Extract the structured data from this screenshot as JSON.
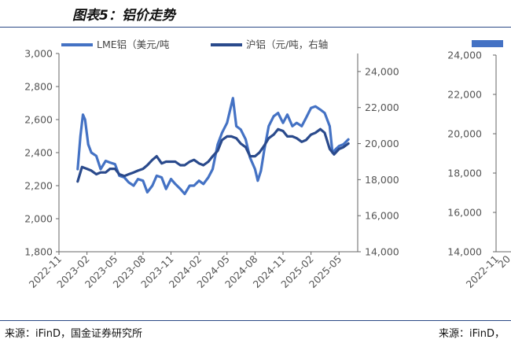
{
  "header": {
    "title": "图表5：铝价走势"
  },
  "source": {
    "left": "来源：iFinD，国金证券研究所",
    "right": "来源：iFinD，"
  },
  "colors": {
    "lme": "#4472c4",
    "shfe": "#2a4a8c",
    "axis": "#666666",
    "header_rule": "#2b4a86"
  },
  "chart_data": [
    {
      "type": "line",
      "title": "",
      "legend": {
        "placement": "top",
        "items": [
          "LME铝（美元/吨",
          "沪铝（元/吨，右轴"
        ]
      },
      "x_ticks": [
        "2022-11",
        "2023-02",
        "2023-05",
        "2023-08",
        "2023-11",
        "2024-02",
        "2024-05",
        "2024-08",
        "2024-11",
        "2025-02",
        "2025-05"
      ],
      "y_left": {
        "ticks": [
          "1,800",
          "2,000",
          "2,200",
          "2,400",
          "2,600",
          "2,800",
          "3,000"
        ],
        "range": [
          1800,
          3000
        ]
      },
      "y_right": {
        "ticks": [
          "14,000",
          "16,000",
          "18,000",
          "20,000",
          "22,000",
          "24,000"
        ],
        "range": [
          14000,
          25000
        ]
      },
      "series": [
        {
          "name": "LME铝（美元/吨",
          "axis": "left",
          "x": [
            "2023-01-01",
            "2023-01-10",
            "2023-01-18",
            "2023-01-25",
            "2023-02-05",
            "2023-02-15",
            "2023-03-01",
            "2023-03-15",
            "2023-04-01",
            "2023-04-15",
            "2023-05-01",
            "2023-05-15",
            "2023-06-01",
            "2023-06-15",
            "2023-07-01",
            "2023-07-15",
            "2023-08-01",
            "2023-08-15",
            "2023-09-01",
            "2023-09-15",
            "2023-10-01",
            "2023-10-15",
            "2023-11-01",
            "2023-11-15",
            "2023-12-01",
            "2023-12-15",
            "2024-01-01",
            "2024-01-15",
            "2024-02-01",
            "2024-02-15",
            "2024-03-01",
            "2024-03-15",
            "2024-04-01",
            "2024-04-15",
            "2024-05-01",
            "2024-05-10",
            "2024-05-20",
            "2024-06-01",
            "2024-06-15",
            "2024-07-01",
            "2024-07-15",
            "2024-08-01",
            "2024-08-10",
            "2024-08-20",
            "2024-09-01",
            "2024-09-15",
            "2024-10-01",
            "2024-10-15",
            "2024-11-01",
            "2024-11-15",
            "2024-12-01",
            "2024-12-15",
            "2025-01-01",
            "2025-01-15",
            "2025-02-01",
            "2025-02-15",
            "2025-03-01",
            "2025-03-15",
            "2025-04-01",
            "2025-04-10",
            "2025-04-20",
            "2025-05-01",
            "2025-05-15",
            "2025-06-01"
          ],
          "y": [
            2300,
            2500,
            2630,
            2600,
            2450,
            2400,
            2380,
            2300,
            2350,
            2340,
            2330,
            2260,
            2250,
            2220,
            2200,
            2240,
            2230,
            2160,
            2200,
            2260,
            2250,
            2180,
            2240,
            2210,
            2180,
            2150,
            2200,
            2200,
            2230,
            2210,
            2250,
            2300,
            2450,
            2520,
            2580,
            2650,
            2730,
            2560,
            2540,
            2480,
            2370,
            2300,
            2230,
            2290,
            2420,
            2560,
            2620,
            2640,
            2580,
            2630,
            2560,
            2580,
            2560,
            2610,
            2670,
            2680,
            2660,
            2640,
            2560,
            2400,
            2420,
            2440,
            2450,
            2480
          ]
        },
        {
          "name": "沪铝（元/吨，右轴",
          "axis": "right",
          "x": [
            "2023-01-01",
            "2023-01-15",
            "2023-02-01",
            "2023-02-15",
            "2023-03-01",
            "2023-03-15",
            "2023-04-01",
            "2023-04-15",
            "2023-05-01",
            "2023-05-15",
            "2023-06-01",
            "2023-06-15",
            "2023-07-01",
            "2023-07-15",
            "2023-08-01",
            "2023-08-15",
            "2023-09-01",
            "2023-09-15",
            "2023-10-01",
            "2023-10-15",
            "2023-11-01",
            "2023-11-15",
            "2023-12-01",
            "2023-12-15",
            "2024-01-01",
            "2024-01-15",
            "2024-02-01",
            "2024-02-15",
            "2024-03-01",
            "2024-03-15",
            "2024-04-01",
            "2024-04-15",
            "2024-05-01",
            "2024-05-15",
            "2024-06-01",
            "2024-06-15",
            "2024-07-01",
            "2024-07-15",
            "2024-08-01",
            "2024-08-15",
            "2024-09-01",
            "2024-09-15",
            "2024-10-01",
            "2024-10-15",
            "2024-11-01",
            "2024-11-15",
            "2024-12-01",
            "2024-12-15",
            "2025-01-01",
            "2025-01-15",
            "2025-02-01",
            "2025-02-15",
            "2025-03-01",
            "2025-03-15",
            "2025-04-01",
            "2025-04-15",
            "2025-05-01",
            "2025-05-15",
            "2025-06-01"
          ],
          "y": [
            17900,
            18700,
            18600,
            18500,
            18300,
            18400,
            18400,
            18600,
            18600,
            18300,
            18200,
            18300,
            18400,
            18500,
            18600,
            18800,
            19100,
            19300,
            18900,
            19000,
            19000,
            19000,
            18800,
            18800,
            19000,
            19100,
            18900,
            18800,
            19000,
            19300,
            19600,
            20200,
            20400,
            20400,
            20300,
            20000,
            19800,
            19300,
            19300,
            19500,
            19900,
            20300,
            20500,
            20800,
            20700,
            20400,
            20400,
            20300,
            20100,
            20200,
            20500,
            20600,
            20800,
            20600,
            19700,
            19400,
            19700,
            19800,
            20000
          ]
        }
      ]
    },
    {
      "type": "line",
      "title": "",
      "x_ticks": [
        "2022-11",
        "20"
      ],
      "y_left": {
        "ticks": [
          "14,000",
          "16,000",
          "18,000",
          "20,000",
          "22,000",
          "24,000"
        ],
        "range": [
          14000,
          24000
        ]
      },
      "series": []
    }
  ]
}
